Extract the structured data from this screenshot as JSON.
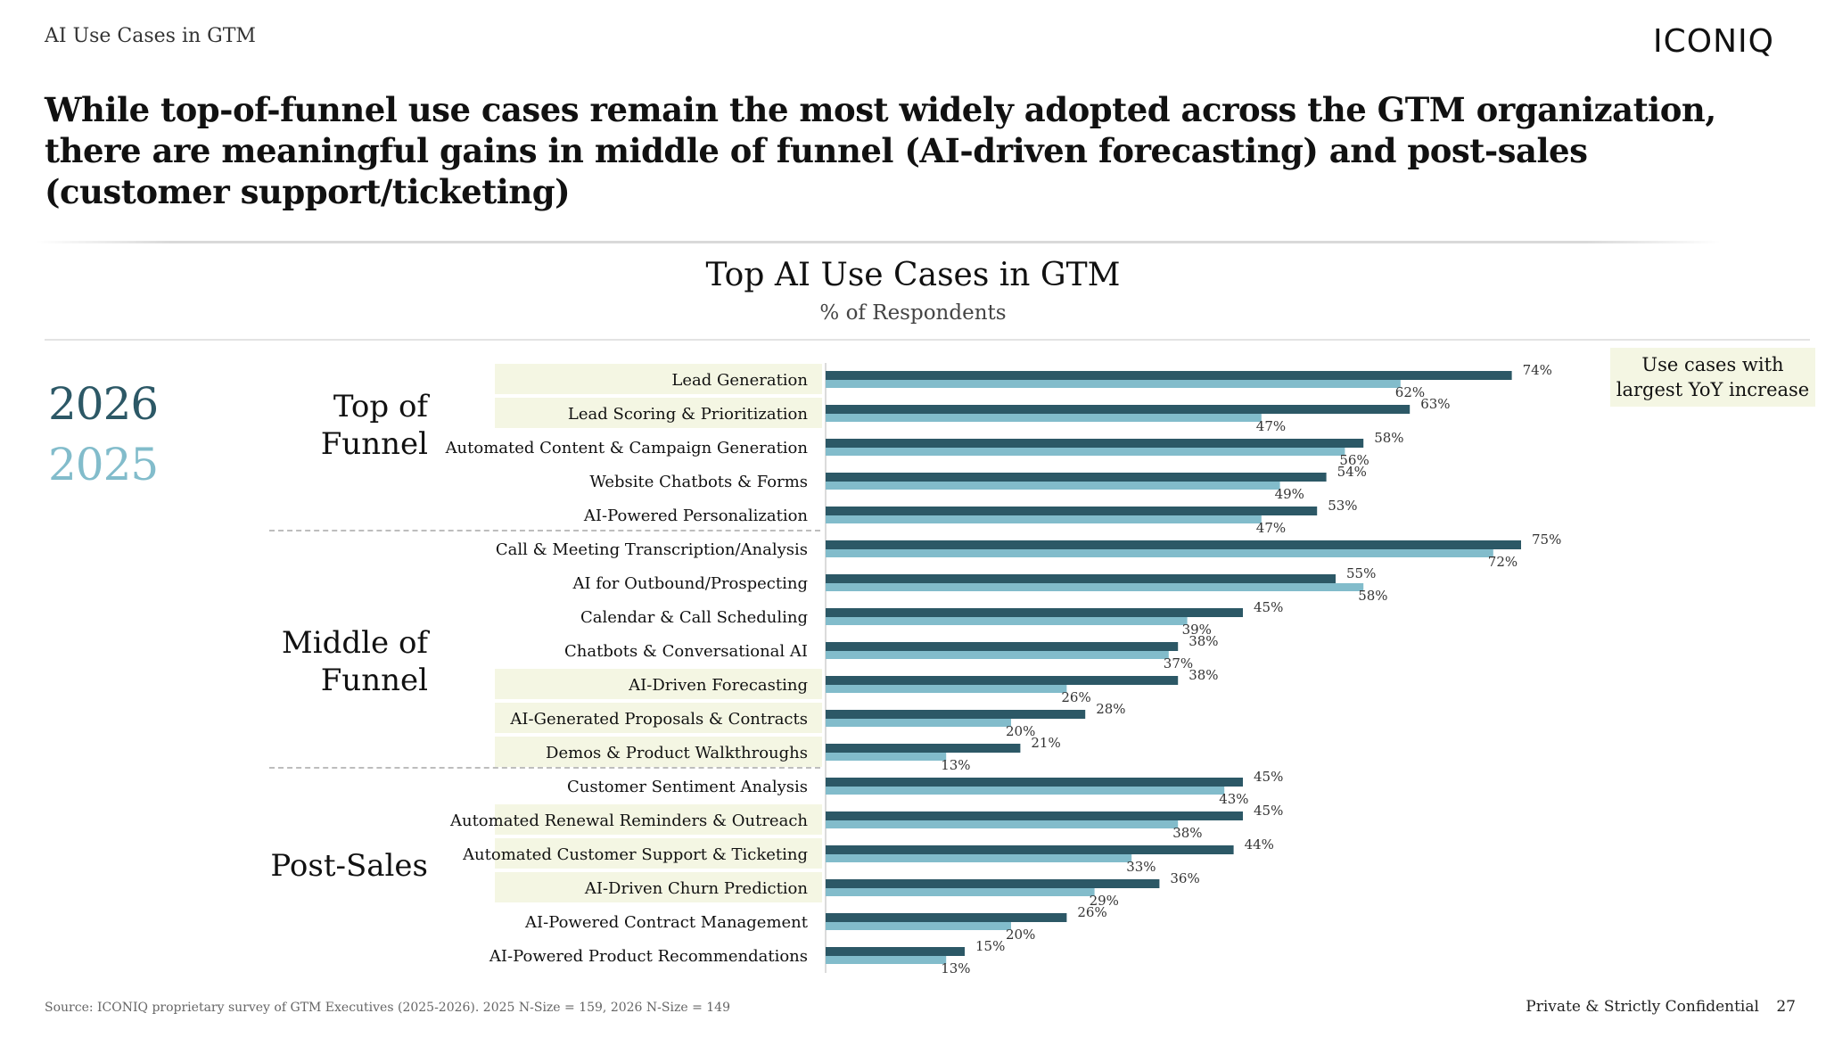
{
  "header": {
    "section_label": "AI Use Cases in GTM",
    "logo": "ICONIQ"
  },
  "headline": "While top-of-funnel use cases remain the most widely adopted across the GTM organization, there are meaningful gains in middle of funnel (AI-driven forecasting) and post-sales (customer support/ticketing)",
  "legend": {
    "year_primary": "2026",
    "year_secondary": "2025"
  },
  "sections": {
    "top": "Top of Funnel",
    "middle": "Middle of Funnel",
    "post": "Post-Sales"
  },
  "callout": "Use cases with largest YoY increase",
  "colors": {
    "series_2026": "#2c5866",
    "series_2025": "#82bccb",
    "highlight": "#f4f6e3"
  },
  "footer": {
    "source": "Source: ICONIQ proprietary survey of GTM Executives (2025-2026). 2025 N-Size = 159, 2026 N-Size = 149",
    "confidential": "Private & Strictly Confidential",
    "page": "27"
  },
  "chart_data": {
    "type": "bar",
    "orientation": "horizontal",
    "title": "Top AI Use Cases in GTM",
    "subtitle": "% of Respondents",
    "xlim": [
      0,
      100
    ],
    "unit": "%",
    "categories": [
      "Lead Generation",
      "Lead Scoring & Prioritization",
      "Automated Content & Campaign Generation",
      "Website Chatbots & Forms",
      "AI-Powered Personalization",
      "Call & Meeting Transcription/Analysis",
      "AI for Outbound/Prospecting",
      "Calendar & Call Scheduling",
      "Chatbots & Conversational AI",
      "AI-Driven Forecasting",
      "AI-Generated Proposals & Contracts",
      "Demos & Product Walkthroughs",
      "Customer Sentiment Analysis",
      "Automated Renewal Reminders & Outreach",
      "Automated Customer Support & Ticketing",
      "AI-Driven Churn Prediction",
      "AI-Powered Contract Management",
      "AI-Powered Product Recommendations"
    ],
    "groups": [
      {
        "name": "Top of Funnel",
        "count": 5
      },
      {
        "name": "Middle of Funnel",
        "count": 7
      },
      {
        "name": "Post-Sales",
        "count": 6
      }
    ],
    "highlighted": [
      true,
      true,
      false,
      false,
      false,
      false,
      false,
      false,
      false,
      true,
      true,
      true,
      false,
      true,
      true,
      true,
      false,
      false
    ],
    "series": [
      {
        "name": "2026",
        "values": [
          74,
          63,
          58,
          54,
          53,
          75,
          55,
          45,
          38,
          38,
          28,
          21,
          45,
          45,
          44,
          36,
          26,
          15
        ]
      },
      {
        "name": "2025",
        "values": [
          62,
          47,
          56,
          49,
          47,
          72,
          58,
          39,
          37,
          26,
          20,
          13,
          43,
          38,
          33,
          29,
          20,
          13
        ]
      }
    ]
  }
}
